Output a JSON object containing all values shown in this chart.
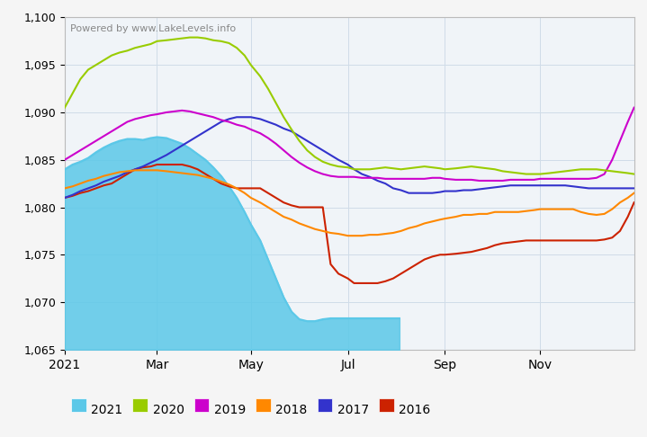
{
  "title": "Powered by www.LakeLevels.info",
  "ylabel_values": [
    1065,
    1070,
    1075,
    1080,
    1085,
    1090,
    1095,
    1100
  ],
  "ylim": [
    1065,
    1100
  ],
  "x_tick_labels": [
    "2021",
    "Mar",
    "May",
    "Jul",
    "Sep",
    "Nov"
  ],
  "x_tick_positions": [
    0,
    59,
    119,
    181,
    243,
    304
  ],
  "background_color": "#ffffff",
  "plot_bg_color": "#f0f4f8",
  "grid_color": "#d0dce8",
  "watermark_text": "Powered by www.LakeLevels.info",
  "legend_items": [
    {
      "label": "2021",
      "color": "#5bc8e8"
    },
    {
      "label": "2020",
      "color": "#99cc00"
    },
    {
      "label": "2019",
      "color": "#cc00cc"
    },
    {
      "label": "2018",
      "color": "#ff8800"
    },
    {
      "label": "2017",
      "color": "#3333cc"
    },
    {
      "label": "2016",
      "color": "#cc2200"
    }
  ],
  "years": {
    "2021": {
      "color": "#5bc8e8",
      "fill": true,
      "data_x": [
        0,
        5,
        10,
        15,
        20,
        25,
        30,
        35,
        40,
        45,
        50,
        55,
        59,
        65,
        70,
        75,
        80,
        85,
        90,
        95,
        100,
        105,
        110,
        115,
        119,
        125,
        130,
        135,
        140,
        145,
        150,
        155,
        160,
        165,
        170,
        175,
        181,
        185,
        190,
        195,
        200,
        205,
        210,
        214
      ],
      "data_y": [
        1084,
        1084.5,
        1084.8,
        1085.2,
        1085.8,
        1086.3,
        1086.7,
        1087.0,
        1087.2,
        1087.2,
        1087.1,
        1087.3,
        1087.4,
        1087.3,
        1087.0,
        1086.7,
        1086.2,
        1085.6,
        1085.0,
        1084.2,
        1083.3,
        1082.2,
        1081.0,
        1079.5,
        1078.2,
        1076.5,
        1074.5,
        1072.5,
        1070.5,
        1069.0,
        1068.2,
        1068.0,
        1068.0,
        1068.2,
        1068.3,
        1068.3,
        1068.3,
        1068.3,
        1068.3,
        1068.3,
        1068.3,
        1068.3,
        1068.3,
        1068.3
      ]
    },
    "2020": {
      "color": "#99cc00",
      "fill": false,
      "data_x": [
        0,
        5,
        10,
        15,
        20,
        25,
        30,
        35,
        40,
        45,
        50,
        55,
        59,
        65,
        70,
        75,
        80,
        85,
        90,
        95,
        100,
        105,
        110,
        115,
        119,
        125,
        130,
        135,
        140,
        145,
        150,
        155,
        160,
        165,
        170,
        175,
        181,
        185,
        190,
        195,
        200,
        205,
        210,
        215,
        220,
        225,
        230,
        235,
        240,
        243,
        250,
        255,
        260,
        265,
        270,
        275,
        280,
        285,
        290,
        295,
        300,
        304,
        310,
        315,
        320,
        325,
        330,
        335,
        340,
        345,
        350,
        355,
        360,
        364
      ],
      "data_y": [
        1090.5,
        1092,
        1093.5,
        1094.5,
        1095,
        1095.5,
        1096,
        1096.3,
        1096.5,
        1096.8,
        1097,
        1097.2,
        1097.5,
        1097.6,
        1097.7,
        1097.8,
        1097.9,
        1097.9,
        1097.8,
        1097.6,
        1097.5,
        1097.3,
        1096.8,
        1096.0,
        1095.0,
        1093.8,
        1092.5,
        1091.0,
        1089.5,
        1088.2,
        1087.0,
        1086.0,
        1085.3,
        1084.8,
        1084.5,
        1084.3,
        1084.2,
        1084.0,
        1084.0,
        1084.0,
        1084.1,
        1084.2,
        1084.1,
        1084.0,
        1084.1,
        1084.2,
        1084.3,
        1084.2,
        1084.1,
        1084.0,
        1084.1,
        1084.2,
        1084.3,
        1084.2,
        1084.1,
        1084.0,
        1083.8,
        1083.7,
        1083.6,
        1083.5,
        1083.5,
        1083.5,
        1083.6,
        1083.7,
        1083.8,
        1083.9,
        1084.0,
        1084.0,
        1084.0,
        1083.9,
        1083.8,
        1083.7,
        1083.6,
        1083.5
      ]
    },
    "2019": {
      "color": "#cc00cc",
      "fill": false,
      "data_x": [
        0,
        5,
        10,
        15,
        20,
        25,
        30,
        35,
        40,
        45,
        50,
        55,
        59,
        65,
        70,
        75,
        80,
        85,
        90,
        95,
        100,
        105,
        110,
        115,
        119,
        125,
        130,
        135,
        140,
        145,
        150,
        155,
        160,
        165,
        170,
        175,
        181,
        185,
        190,
        195,
        200,
        205,
        210,
        215,
        220,
        225,
        230,
        235,
        240,
        243,
        250,
        255,
        260,
        265,
        270,
        275,
        280,
        285,
        290,
        295,
        300,
        304,
        310,
        315,
        320,
        325,
        330,
        335,
        340,
        345,
        350,
        355,
        360,
        364
      ],
      "data_y": [
        1085,
        1085.5,
        1086,
        1086.5,
        1087,
        1087.5,
        1088,
        1088.5,
        1089,
        1089.3,
        1089.5,
        1089.7,
        1089.8,
        1090,
        1090.1,
        1090.2,
        1090.1,
        1089.9,
        1089.7,
        1089.5,
        1089.2,
        1089.0,
        1088.7,
        1088.5,
        1088.2,
        1087.8,
        1087.3,
        1086.7,
        1086.0,
        1085.3,
        1084.7,
        1084.2,
        1083.8,
        1083.5,
        1083.3,
        1083.2,
        1083.2,
        1083.2,
        1083.1,
        1083.1,
        1083.1,
        1083.0,
        1083.0,
        1083.0,
        1083.0,
        1083.0,
        1083.0,
        1083.1,
        1083.1,
        1083.0,
        1082.9,
        1082.9,
        1082.9,
        1082.8,
        1082.8,
        1082.8,
        1082.8,
        1082.9,
        1082.9,
        1082.9,
        1082.9,
        1083.0,
        1083.0,
        1083.0,
        1083.0,
        1083.0,
        1083.0,
        1083.0,
        1083.1,
        1083.5,
        1085.0,
        1087.0,
        1089.0,
        1090.5
      ]
    },
    "2018": {
      "color": "#ff8800",
      "fill": false,
      "data_x": [
        0,
        5,
        10,
        15,
        20,
        25,
        30,
        35,
        40,
        45,
        50,
        55,
        59,
        65,
        70,
        75,
        80,
        85,
        90,
        95,
        100,
        105,
        110,
        115,
        119,
        125,
        130,
        135,
        140,
        145,
        150,
        155,
        160,
        165,
        170,
        175,
        181,
        185,
        190,
        195,
        200,
        205,
        210,
        215,
        220,
        225,
        230,
        235,
        240,
        243,
        250,
        255,
        260,
        265,
        270,
        275,
        280,
        285,
        290,
        295,
        300,
        304,
        310,
        315,
        320,
        325,
        330,
        335,
        340,
        345,
        350,
        355,
        360,
        364
      ],
      "data_y": [
        1082,
        1082.2,
        1082.5,
        1082.8,
        1083,
        1083.3,
        1083.5,
        1083.7,
        1083.8,
        1083.9,
        1083.9,
        1083.9,
        1083.9,
        1083.8,
        1083.7,
        1083.6,
        1083.5,
        1083.4,
        1083.2,
        1083.0,
        1082.7,
        1082.4,
        1082.0,
        1081.5,
        1081.0,
        1080.5,
        1080.0,
        1079.5,
        1079.0,
        1078.7,
        1078.3,
        1078.0,
        1077.7,
        1077.5,
        1077.3,
        1077.2,
        1077.0,
        1077.0,
        1077.0,
        1077.1,
        1077.1,
        1077.2,
        1077.3,
        1077.5,
        1077.8,
        1078.0,
        1078.3,
        1078.5,
        1078.7,
        1078.8,
        1079.0,
        1079.2,
        1079.2,
        1079.3,
        1079.3,
        1079.5,
        1079.5,
        1079.5,
        1079.5,
        1079.6,
        1079.7,
        1079.8,
        1079.8,
        1079.8,
        1079.8,
        1079.8,
        1079.5,
        1079.3,
        1079.2,
        1079.3,
        1079.8,
        1080.5,
        1081.0,
        1081.5
      ]
    },
    "2017": {
      "color": "#3333cc",
      "fill": false,
      "data_x": [
        0,
        5,
        10,
        15,
        20,
        25,
        30,
        35,
        40,
        45,
        50,
        55,
        59,
        65,
        70,
        75,
        80,
        85,
        90,
        95,
        100,
        105,
        110,
        115,
        119,
        125,
        130,
        135,
        140,
        145,
        150,
        155,
        160,
        165,
        170,
        175,
        181,
        185,
        190,
        195,
        200,
        205,
        210,
        215,
        220,
        225,
        230,
        235,
        240,
        243,
        250,
        255,
        260,
        265,
        270,
        275,
        280,
        285,
        290,
        295,
        300,
        304,
        310,
        315,
        320,
        325,
        330,
        335,
        340,
        345,
        350,
        355,
        360,
        364
      ],
      "data_y": [
        1081,
        1081.3,
        1081.7,
        1082.0,
        1082.3,
        1082.7,
        1083.0,
        1083.3,
        1083.7,
        1084.0,
        1084.3,
        1084.7,
        1085.0,
        1085.5,
        1086.0,
        1086.5,
        1087.0,
        1087.5,
        1088.0,
        1088.5,
        1089.0,
        1089.3,
        1089.5,
        1089.5,
        1089.5,
        1089.3,
        1089.0,
        1088.7,
        1088.3,
        1088.0,
        1087.5,
        1087.0,
        1086.5,
        1086.0,
        1085.5,
        1085.0,
        1084.5,
        1084.0,
        1083.5,
        1083.2,
        1082.8,
        1082.5,
        1082.0,
        1081.8,
        1081.5,
        1081.5,
        1081.5,
        1081.5,
        1081.6,
        1081.7,
        1081.7,
        1081.8,
        1081.8,
        1081.9,
        1082.0,
        1082.1,
        1082.2,
        1082.3,
        1082.3,
        1082.3,
        1082.3,
        1082.3,
        1082.3,
        1082.3,
        1082.3,
        1082.2,
        1082.1,
        1082.0,
        1082.0,
        1082.0,
        1082.0,
        1082.0,
        1082.0,
        1082.0
      ]
    },
    "2016": {
      "color": "#cc2200",
      "fill": false,
      "data_x": [
        0,
        5,
        10,
        15,
        20,
        25,
        30,
        35,
        40,
        45,
        50,
        55,
        59,
        65,
        70,
        75,
        80,
        85,
        90,
        95,
        100,
        105,
        110,
        115,
        119,
        125,
        130,
        135,
        140,
        145,
        150,
        155,
        160,
        165,
        170,
        175,
        181,
        185,
        190,
        195,
        200,
        205,
        210,
        215,
        220,
        225,
        230,
        235,
        240,
        243,
        250,
        255,
        260,
        265,
        270,
        275,
        280,
        285,
        290,
        295,
        300,
        304,
        310,
        315,
        320,
        325,
        330,
        335,
        340,
        345,
        350,
        355,
        360,
        364
      ],
      "data_y": [
        1081,
        1081.2,
        1081.5,
        1081.7,
        1082.0,
        1082.3,
        1082.5,
        1083.0,
        1083.5,
        1084.0,
        1084.2,
        1084.3,
        1084.5,
        1084.5,
        1084.5,
        1084.5,
        1084.3,
        1084.0,
        1083.5,
        1083.0,
        1082.5,
        1082.2,
        1082.0,
        1082.0,
        1082.0,
        1082.0,
        1081.5,
        1081.0,
        1080.5,
        1080.2,
        1080.0,
        1080.0,
        1080.0,
        1080.0,
        1074.0,
        1073.0,
        1072.5,
        1072.0,
        1072.0,
        1072.0,
        1072.0,
        1072.2,
        1072.5,
        1073.0,
        1073.5,
        1074.0,
        1074.5,
        1074.8,
        1075.0,
        1075.0,
        1075.1,
        1075.2,
        1075.3,
        1075.5,
        1075.7,
        1076.0,
        1076.2,
        1076.3,
        1076.4,
        1076.5,
        1076.5,
        1076.5,
        1076.5,
        1076.5,
        1076.5,
        1076.5,
        1076.5,
        1076.5,
        1076.5,
        1076.6,
        1076.8,
        1077.5,
        1079.0,
        1080.5
      ]
    }
  }
}
